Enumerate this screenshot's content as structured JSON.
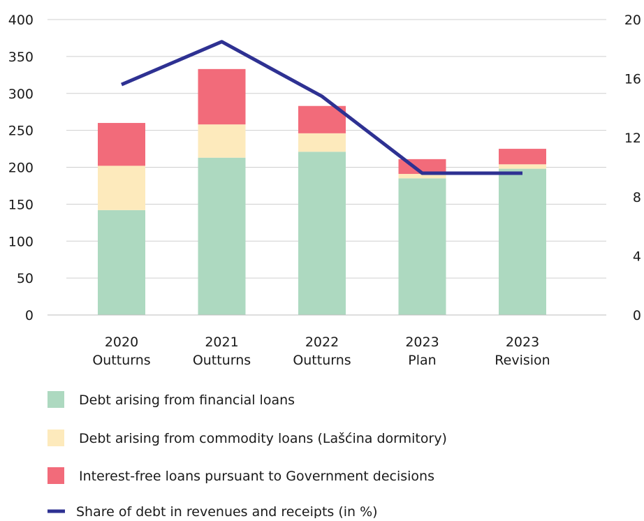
{
  "chart_data": {
    "type": "bar",
    "stacked": true,
    "categories": [
      [
        "2020",
        "Outturns"
      ],
      [
        "2021",
        "Outturns"
      ],
      [
        "2022",
        "Outturns"
      ],
      [
        "2023",
        "Plan"
      ],
      [
        "2023",
        "Revision"
      ]
    ],
    "series": [
      {
        "name": "Debt arising from financial loans",
        "color": "#add9c0",
        "values": [
          142,
          213,
          221,
          185,
          198
        ]
      },
      {
        "name": "Debt arising from commodity loans (Lašćina dormitory)",
        "color": "#fdeabc",
        "values": [
          60,
          45,
          25,
          6,
          6
        ]
      },
      {
        "name": "Interest-free loans pursuant to Government decisions",
        "color": "#f26b7a",
        "values": [
          58,
          75,
          37,
          20,
          21
        ]
      }
    ],
    "line_series": {
      "name": "Share of debt in revenues and receipts (in %)",
      "color": "#2e3192",
      "axis": "right",
      "values": [
        15.6,
        18.5,
        14.8,
        9.6,
        9.6
      ]
    },
    "y_left": {
      "ylim": [
        0,
        400
      ],
      "ticks": [
        0,
        50,
        100,
        150,
        200,
        250,
        300,
        350,
        400
      ]
    },
    "y_right": {
      "ylim": [
        0,
        20
      ],
      "ticks": [
        0,
        4,
        8,
        12,
        16,
        20
      ]
    },
    "grid": true,
    "legend_position": "bottom"
  }
}
